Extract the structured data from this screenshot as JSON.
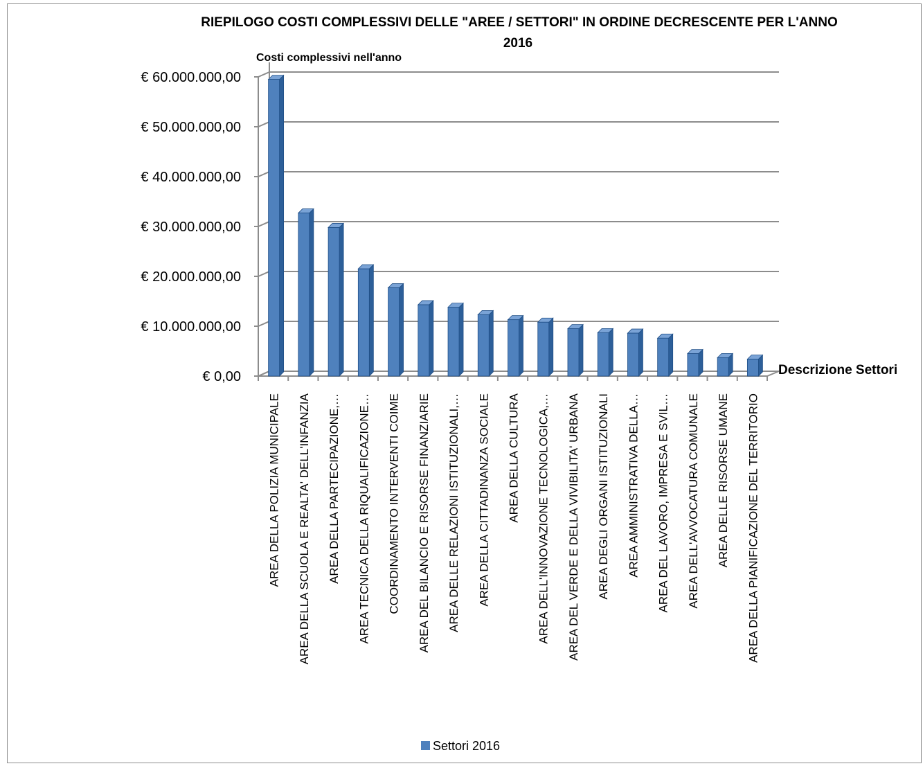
{
  "chart_data": {
    "type": "bar",
    "title_line1": "RIEPILOGO COSTI COMPLESSIVI DELLE \"AREE / SETTORI\" IN ORDINE DECRESCENTE PER L'ANNO",
    "title_line2": "2016",
    "ylabel": "Costi complessivi nell'anno",
    "xlabel": "Descrizione Settori",
    "ylim": [
      0,
      60000000
    ],
    "y_ticks": [
      "€ 0,00",
      "€ 10.000.000,00",
      "€ 20.000.000,00",
      "€ 30.000.000,00",
      "€ 40.000.000,00",
      "€ 50.000.000,00",
      "€ 60.000.000,00"
    ],
    "categories": [
      "AREA DELLA POLIZIA MUNICIPALE",
      "AREA DELLA SCUOLA E REALTA' DELL'INFANZIA",
      "AREA DELLA PARTECIPAZIONE,…",
      "AREA TECNICA DELLA RIQUALIFICAZIONE…",
      "COORDINAMENTO INTERVENTI COIME",
      "AREA DEL BILANCIO E RISORSE FINANZIARIE",
      "AREA DELLE RELAZIONI ISTITUZIONALI,…",
      "AREA DELLA CITTADINANZA SOCIALE",
      "AREA DELLA CULTURA",
      "AREA DELL'INNOVAZIONE TECNOLOGICA,…",
      "AREA DEL VERDE E DELLA VIVIBILITA' URBANA",
      "AREA DEGLI ORGANI ISTITUZIONALI",
      "AREA AMMINISTRATIVA DELLA…",
      "AREA DEL LAVORO, IMPRESA E SVIL…",
      "AREA DELL'AVVOCATURA COMUNALE",
      "AREA DELLE RISORSE UMANE",
      "AREA DELLA PIANIFICAZIONE DEL TERRITORIO"
    ],
    "series": [
      {
        "name": "Settori 2016",
        "color": "#4f81bd",
        "values": [
          59500000,
          32700000,
          29800000,
          21500000,
          17700000,
          14300000,
          13800000,
          12300000,
          11300000,
          10800000,
          9500000,
          8700000,
          8600000,
          7600000,
          4500000,
          3700000,
          3400000
        ]
      }
    ],
    "grid": true,
    "legend_position": "bottom"
  }
}
